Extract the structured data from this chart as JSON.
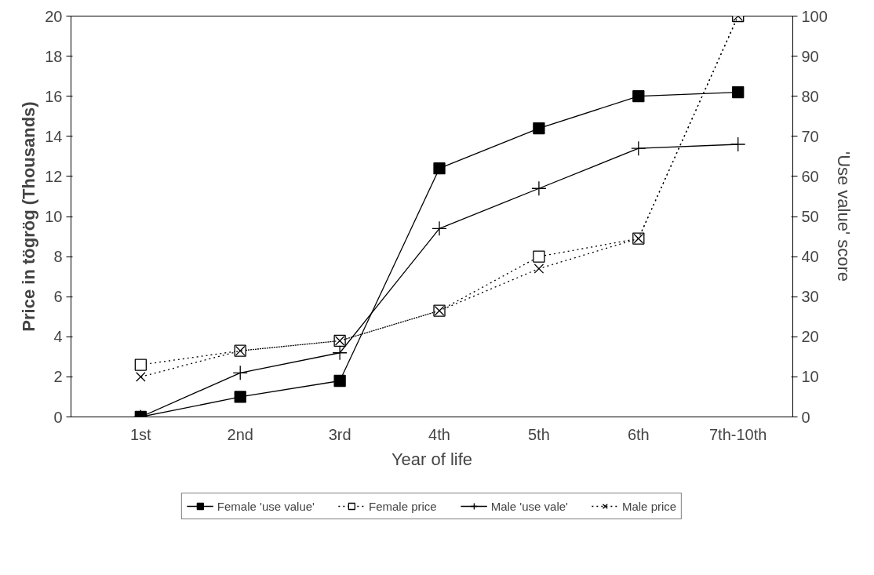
{
  "chart_data": {
    "type": "line",
    "xlabel": "Year of life",
    "ylabel": "Price in tögrög (Thousands)",
    "y2label": "'Use value' score",
    "categories": [
      "1st",
      "2nd",
      "3rd",
      "4th",
      "5th",
      "6th",
      "7th-10th"
    ],
    "ylim": [
      0,
      20
    ],
    "yticks": [
      0,
      2,
      4,
      6,
      8,
      10,
      12,
      14,
      16,
      18,
      20
    ],
    "y2lim": [
      0,
      100
    ],
    "y2ticks": [
      0,
      10,
      20,
      30,
      40,
      50,
      60,
      70,
      80,
      90,
      100
    ],
    "grid": false,
    "legend": "bottom",
    "series": [
      {
        "name": "Female 'use value'",
        "color": "#000000",
        "axis": "y2",
        "marker": "square",
        "line_style": "solid",
        "values": [
          0,
          5,
          9,
          62,
          72,
          80,
          81
        ]
      },
      {
        "name": "Female price",
        "color": "#000000",
        "marker": "square",
        "line_style": "dotted",
        "values": [
          2.6,
          3.3,
          3.8,
          5.3,
          8.0,
          8.9,
          20
        ]
      },
      {
        "name": "Male 'use vale'",
        "color": "#000000",
        "axis": "y2",
        "marker": "cross",
        "line_style": "solid",
        "values": [
          0,
          11,
          16,
          47,
          57,
          67,
          68
        ]
      },
      {
        "name": "Male price",
        "color": "#000000",
        "marker": "x",
        "line_style": "dotted",
        "values": [
          2.0,
          3.3,
          3.8,
          5.3,
          7.4,
          8.9,
          20
        ]
      }
    ]
  }
}
